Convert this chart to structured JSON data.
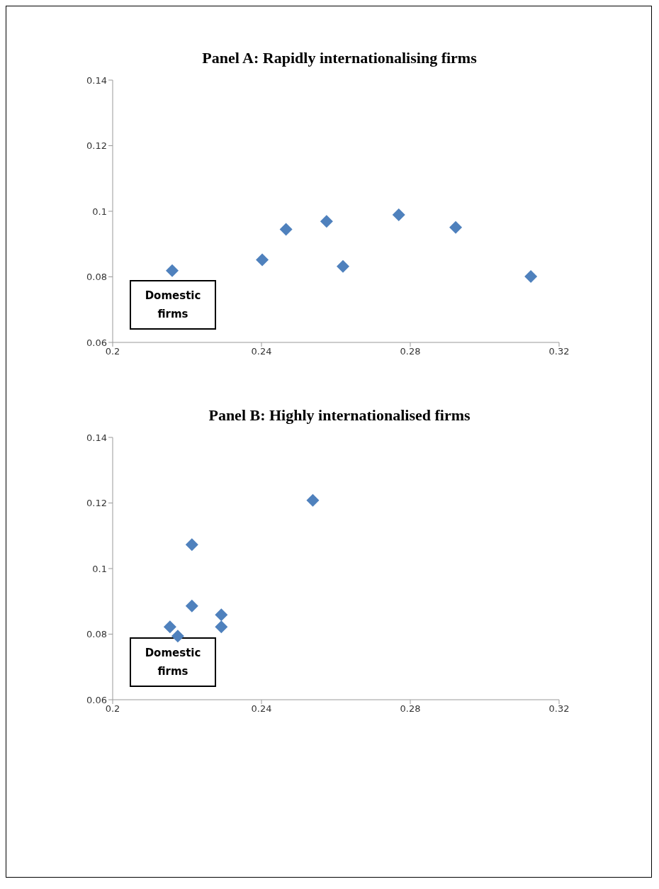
{
  "chart_data": [
    {
      "type": "scatter",
      "title": "Panel A: Rapidly internationalising firms",
      "x": [
        0.216,
        0.2402,
        0.2466,
        0.2575,
        0.2619,
        0.2769,
        0.2922,
        0.3124
      ],
      "series": [
        {
          "color": "#4f81bd",
          "values": [
            0.0819,
            0.0852,
            0.0945,
            0.0969,
            0.0832,
            0.0989,
            0.0951,
            0.0801
          ]
        }
      ],
      "xlim": [
        0.2,
        0.32
      ],
      "xticks": [
        0.2,
        0.24,
        0.28,
        0.32
      ],
      "ylim": [
        0.06,
        0.14
      ],
      "yticks": [
        0.06,
        0.08,
        0.1,
        0.12,
        0.14
      ],
      "grid": false,
      "marker": "diamond",
      "annotations": [
        "Domestic firms"
      ]
    },
    {
      "type": "scatter",
      "title": "Panel B: Highly internationalised firms",
      "x": [
        0.2154,
        0.2175,
        0.2213,
        0.2213,
        0.2292,
        0.2292,
        0.2538
      ],
      "series": [
        {
          "color": "#4f81bd",
          "values": [
            0.0822,
            0.0794,
            0.1073,
            0.0886,
            0.0859,
            0.0822,
            0.1208
          ]
        }
      ],
      "xlim": [
        0.2,
        0.32
      ],
      "xticks": [
        0.2,
        0.24,
        0.28,
        0.32
      ],
      "ylim": [
        0.06,
        0.14
      ],
      "yticks": [
        0.06,
        0.08,
        0.1,
        0.12,
        0.14
      ],
      "grid": false,
      "marker": "diamond",
      "annotations": [
        "Domestic firms"
      ]
    }
  ]
}
